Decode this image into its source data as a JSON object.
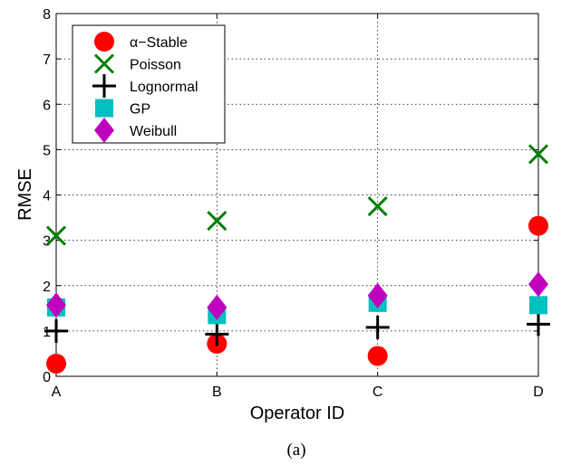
{
  "chart_data": {
    "type": "scatter",
    "xlabel": "Operator ID",
    "ylabel": "RMSE",
    "caption": "(a)",
    "categories": [
      "A",
      "B",
      "C",
      "D"
    ],
    "ylim": [
      0,
      8
    ],
    "yticks": [
      "0",
      "1",
      "2",
      "3",
      "4",
      "5",
      "6",
      "7",
      "8"
    ],
    "grid": true,
    "legend_position": "top-left",
    "series": [
      {
        "name": "α−Stable",
        "marker": "circle",
        "color": "#ff0000",
        "values": [
          0.28,
          0.72,
          0.45,
          3.32
        ]
      },
      {
        "name": "Poisson",
        "marker": "x",
        "color": "#007f00",
        "values": [
          3.1,
          3.43,
          3.75,
          4.9
        ]
      },
      {
        "name": "Lognormal",
        "marker": "plus",
        "color": "#000000",
        "values": [
          1.0,
          0.93,
          1.08,
          1.15
        ]
      },
      {
        "name": "GP",
        "marker": "square",
        "color": "#00bfbf",
        "values": [
          1.52,
          1.35,
          1.62,
          1.57
        ]
      },
      {
        "name": "Weibull",
        "marker": "diamond",
        "color": "#bf00bf",
        "values": [
          1.57,
          1.52,
          1.78,
          2.03
        ]
      }
    ]
  }
}
